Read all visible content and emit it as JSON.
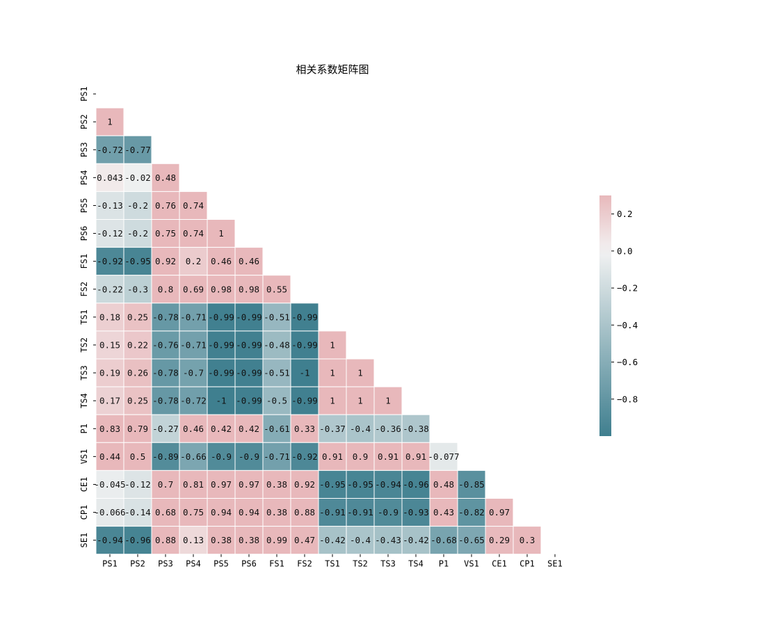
{
  "chart_data": {
    "type": "heatmap",
    "title": "相关系数矩阵图",
    "labels": [
      "PS1",
      "PS2",
      "PS3",
      "PS4",
      "PS5",
      "PS6",
      "FS1",
      "FS2",
      "TS1",
      "TS2",
      "TS3",
      "TS4",
      "P1",
      "VS1",
      "CE1",
      "CP1",
      "SE1"
    ],
    "mask": "upper-triangle-including-diagonal",
    "rows": [
      [],
      [
        "1"
      ],
      [
        "-0.72",
        "-0.77"
      ],
      [
        "0.043",
        "-0.02",
        "0.48"
      ],
      [
        "-0.13",
        "-0.2",
        "0.76",
        "0.74"
      ],
      [
        "-0.12",
        "-0.2",
        "0.75",
        "0.74",
        "1"
      ],
      [
        "-0.92",
        "-0.95",
        "0.92",
        "0.2",
        "0.46",
        "0.46"
      ],
      [
        "-0.22",
        "-0.3",
        "0.8",
        "0.69",
        "0.98",
        "0.98",
        "0.55"
      ],
      [
        "0.18",
        "0.25",
        "-0.78",
        "-0.71",
        "-0.99",
        "-0.99",
        "-0.51",
        "-0.99"
      ],
      [
        "0.15",
        "0.22",
        "-0.76",
        "-0.71",
        "-0.99",
        "-0.99",
        "-0.48",
        "-0.99",
        "1"
      ],
      [
        "0.19",
        "0.26",
        "-0.78",
        "-0.7",
        "-0.99",
        "-0.99",
        "-0.51",
        "-1",
        "1",
        "1"
      ],
      [
        "0.17",
        "0.25",
        "-0.78",
        "-0.72",
        "-1",
        "-0.99",
        "-0.5",
        "-0.99",
        "1",
        "1",
        "1"
      ],
      [
        "0.83",
        "0.79",
        "-0.27",
        "0.46",
        "0.42",
        "0.42",
        "-0.61",
        "0.33",
        "-0.37",
        "-0.4",
        "-0.36",
        "-0.38"
      ],
      [
        "0.44",
        "0.5",
        "-0.89",
        "-0.66",
        "-0.9",
        "-0.9",
        "-0.71",
        "-0.92",
        "0.91",
        "0.9",
        "0.91",
        "0.91",
        "-0.077"
      ],
      [
        "-0.045",
        "-0.12",
        "0.7",
        "0.81",
        "0.97",
        "0.97",
        "0.38",
        "0.92",
        "-0.95",
        "-0.95",
        "-0.94",
        "-0.96",
        "0.48",
        "-0.85"
      ],
      [
        "-0.066",
        "-0.14",
        "0.68",
        "0.75",
        "0.94",
        "0.94",
        "0.38",
        "0.88",
        "-0.91",
        "-0.91",
        "-0.9",
        "-0.93",
        "0.43",
        "-0.82",
        "0.97"
      ],
      [
        "-0.94",
        "-0.96",
        "0.88",
        "0.13",
        "0.38",
        "0.38",
        "0.99",
        "0.47",
        "-0.42",
        "-0.4",
        "-0.43",
        "-0.42",
        "-0.68",
        "-0.65",
        "0.29",
        "0.3"
      ]
    ],
    "colorbar": {
      "vmin": -1.0,
      "vmax": 0.3,
      "ticks": [
        0.2,
        0.0,
        -0.2,
        -0.4,
        -0.6,
        -0.8
      ],
      "tick_labels": [
        "0.2",
        "0.0",
        "−0.2",
        "−0.4",
        "−0.6",
        "−0.8"
      ]
    },
    "colors": {
      "negative": "#3f7f8f",
      "center": "#f2f2f2",
      "positive": "#e8b8bb"
    },
    "grid_line_color": "#ffffff"
  }
}
